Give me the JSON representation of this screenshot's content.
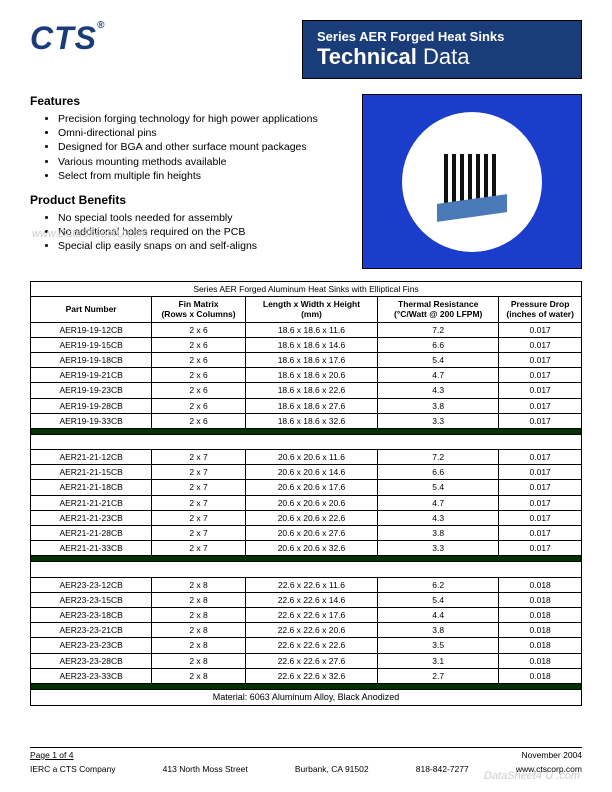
{
  "logo": {
    "text": "CTS",
    "reg": "®"
  },
  "title": {
    "series": "Series AER Forged Heat Sinks",
    "main": "Technical",
    "sub": "Data"
  },
  "features": {
    "heading": "Features",
    "items": [
      "Precision forging technology for high power applications",
      "Omni-directional pins",
      "Designed for BGA and other surface mount packages",
      "Various mounting methods available",
      "Select from multiple fin heights"
    ]
  },
  "benefits": {
    "heading": "Product Benefits",
    "items": [
      "No special tools needed for assembly",
      "No additional holes required on the PCB",
      "Special clip easily snaps on and self-aligns"
    ]
  },
  "image": {
    "name": "heatsink-product-image",
    "bg_color": "#1a3dcc",
    "circle_color": "#ffffff",
    "fin_color": "#111111",
    "clip_color": "#4a7ab8"
  },
  "table": {
    "title": "Series AER Forged Aluminum Heat Sinks with Elliptical Fins",
    "columns": [
      "Part Number",
      "Fin Matrix\n(Rows x Columns)",
      "Length x Width x Height\n(mm)",
      "Thermal Resistance\n(°C/Watt @ 200 LFPM)",
      "Pressure Drop\n(inches of water)"
    ],
    "groups": [
      {
        "rows": [
          [
            "AER19-19-12CB",
            "2 x 6",
            "18.6 x 18.6 x 11.6",
            "7.2",
            "0.017"
          ],
          [
            "AER19-19-15CB",
            "2 x 6",
            "18.6 x 18.6 x 14.6",
            "6.6",
            "0.017"
          ],
          [
            "AER19-19-18CB",
            "2 x 6",
            "18.6 x 18.6 x 17.6",
            "5.4",
            "0.017"
          ],
          [
            "AER19-19-21CB",
            "2 x 6",
            "18.6 x 18.6 x 20.6",
            "4.7",
            "0.017"
          ],
          [
            "AER19-19-23CB",
            "2 x 6",
            "18.6 x 18.6 x 22.6",
            "4.3",
            "0.017"
          ],
          [
            "AER19-19-28CB",
            "2 x 6",
            "18.6 x 18.6 x 27.6",
            "3.8",
            "0.017"
          ],
          [
            "AER19-19-33CB",
            "2 x 6",
            "18.6 x 18.6 x 32.6",
            "3.3",
            "0.017"
          ]
        ]
      },
      {
        "rows": [
          [
            "AER21-21-12CB",
            "2 x 7",
            "20.6 x 20.6 x 11.6",
            "7.2",
            "0.017"
          ],
          [
            "AER21-21-15CB",
            "2 x 7",
            "20.6 x 20.6 x 14.6",
            "6.6",
            "0.017"
          ],
          [
            "AER21-21-18CB",
            "2 x 7",
            "20.6 x 20.6 x 17.6",
            "5.4",
            "0.017"
          ],
          [
            "AER21-21-21CB",
            "2 x 7",
            "20.6 x 20.6 x 20.6",
            "4.7",
            "0.017"
          ],
          [
            "AER21-21-23CB",
            "2 x 7",
            "20.6 x 20.6 x 22.6",
            "4.3",
            "0.017"
          ],
          [
            "AER21-21-28CB",
            "2 x 7",
            "20.6 x 20.6 x 27.6",
            "3.8",
            "0.017"
          ],
          [
            "AER21-21-33CB",
            "2 x 7",
            "20.6 x 20.6 x 32.6",
            "3.3",
            "0.017"
          ]
        ]
      },
      {
        "rows": [
          [
            "AER23-23-12CB",
            "2 x 8",
            "22.6 x 22.6 x 11.6",
            "6.2",
            "0.018"
          ],
          [
            "AER23-23-15CB",
            "2 x 8",
            "22.6 x 22.6 x 14.6",
            "5.4",
            "0.018"
          ],
          [
            "AER23-23-18CB",
            "2 x 8",
            "22.6 x 22.6 x 17.6",
            "4.4",
            "0.018"
          ],
          [
            "AER23-23-21CB",
            "2 x 8",
            "22.6 x 22.6 x 20.6",
            "3.8",
            "0.018"
          ],
          [
            "AER23-23-23CB",
            "2 x 8",
            "22.6 x 22.6 x 22.6",
            "3.5",
            "0.018"
          ],
          [
            "AER23-23-28CB",
            "2 x 8",
            "22.6 x 22.6 x 27.6",
            "3.1",
            "0.018"
          ],
          [
            "AER23-23-33CB",
            "2 x 8",
            "22.6 x 22.6 x 32.6",
            "2.7",
            "0.018"
          ]
        ]
      }
    ],
    "material": "Material:  6063 Aluminum Alloy, Black Anodized",
    "col_widths": [
      "22%",
      "17%",
      "24%",
      "22%",
      "15%"
    ],
    "sep_color": "#003300"
  },
  "footer": {
    "page": "Page 1 of 4",
    "date": "November 2004",
    "company": "IERC a CTS Company",
    "address": "413 North Moss Street",
    "city": "Burbank, CA  91502",
    "phone": "818-842-7277",
    "url": "www.ctscorp.com"
  },
  "watermarks": {
    "w1": "www.DataSheet4U.com",
    "w2": "DataSheet4 U .com",
    "w3": "www.DataSheet4U.com"
  }
}
